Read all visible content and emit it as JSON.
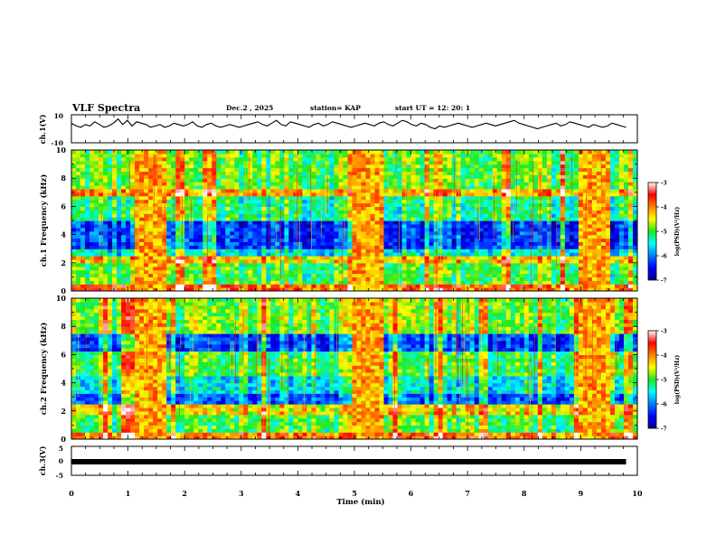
{
  "header": {
    "title": "VLF Spectra",
    "date": "Dec.2 , 2025",
    "station": "station= KAP",
    "start": "start UT = 12: 20: 1"
  },
  "chart_data": [
    {
      "type": "line",
      "name": "ch1-voltage",
      "ylabel": "ch.1(V)",
      "ylim": [
        -10,
        10
      ],
      "yticklabels": [
        "10",
        "-10"
      ],
      "series": [
        {
          "name": "ch.1",
          "values": [
            4,
            2,
            1,
            3,
            2,
            5,
            3,
            1,
            2,
            4,
            7,
            3,
            6,
            2,
            5,
            4,
            3,
            1,
            2,
            3,
            1,
            2,
            4,
            3,
            2,
            3,
            5,
            2,
            1,
            3,
            4,
            2,
            1,
            2,
            3,
            2,
            1,
            2,
            3,
            4,
            5,
            3,
            2,
            4,
            6,
            3,
            2,
            5,
            4,
            3,
            2,
            1,
            3,
            4,
            2,
            3,
            5,
            4,
            3,
            2,
            1,
            2,
            3,
            4,
            3,
            2,
            4,
            5,
            3,
            2,
            4,
            6,
            5,
            3,
            2,
            4,
            3,
            1,
            0,
            2,
            1,
            2,
            3,
            4,
            3,
            2,
            1,
            2,
            3,
            4,
            3,
            2,
            3,
            4,
            5,
            6,
            4,
            3,
            2,
            1,
            0,
            1,
            2,
            3,
            4,
            2,
            3,
            5,
            4,
            3,
            2,
            1,
            3,
            2,
            1,
            2,
            4,
            3,
            2,
            1
          ]
        }
      ]
    },
    {
      "type": "heatmap",
      "name": "ch1-spectrogram",
      "ylabel": "ch.1 Frequency (kHz)",
      "ylim": [
        0,
        10
      ],
      "yticks": [
        0,
        2,
        4,
        6,
        8,
        10
      ],
      "colorbar": {
        "label": "log(PSD)(V²/Hz)",
        "range": [
          -7,
          -3
        ],
        "ticks": [
          -3,
          -4,
          -5,
          -6,
          -7
        ]
      },
      "bands_khz": [
        {
          "from": 0,
          "to": 0.5,
          "level": -3.8
        },
        {
          "from": 0.5,
          "to": 2,
          "level": -5.0
        },
        {
          "from": 2,
          "to": 2.5,
          "level": -4.3
        },
        {
          "from": 2.5,
          "to": 3,
          "level": -5.5
        },
        {
          "from": 3,
          "to": 5,
          "level": -6.3
        },
        {
          "from": 5,
          "to": 6.8,
          "level": -5.2
        },
        {
          "from": 6.8,
          "to": 7.2,
          "level": -4.1
        },
        {
          "from": 7.2,
          "to": 10,
          "level": -4.9
        }
      ],
      "bursts_min": [
        [
          1.1,
          1.65
        ],
        [
          5.0,
          5.5
        ],
        [
          8.95,
          9.5
        ]
      ]
    },
    {
      "type": "heatmap",
      "name": "ch2-spectrogram",
      "ylabel": "ch.2 Frequency (kHz)",
      "ylim": [
        0,
        10
      ],
      "yticks": [
        0,
        2,
        4,
        6,
        8,
        10
      ],
      "colorbar": {
        "label": "log(PSD)(V²/Hz)",
        "range": [
          -7,
          -3
        ],
        "ticks": [
          -3,
          -4,
          -5,
          -6,
          -7
        ]
      },
      "bands_khz": [
        {
          "from": 0,
          "to": 0.5,
          "level": -3.9
        },
        {
          "from": 0.5,
          "to": 1.8,
          "level": -5.0
        },
        {
          "from": 1.8,
          "to": 2.4,
          "level": -4.4
        },
        {
          "from": 2.4,
          "to": 3.2,
          "level": -6.1
        },
        {
          "from": 3.2,
          "to": 4.6,
          "level": -5.5
        },
        {
          "from": 4.6,
          "to": 6.2,
          "level": -5.0
        },
        {
          "from": 6.2,
          "to": 7.4,
          "level": -6.2
        },
        {
          "from": 7.4,
          "to": 10,
          "level": -4.8
        }
      ],
      "bursts_min": [
        [
          1.1,
          1.65
        ],
        [
          5.0,
          5.5
        ],
        [
          8.95,
          9.5
        ]
      ]
    },
    {
      "type": "line",
      "name": "ch3-voltage",
      "ylabel": "ch.3(V)",
      "ylim": [
        -5,
        5
      ],
      "yticklabels": [
        "5",
        "0",
        "-5"
      ],
      "series": [
        {
          "name": "ch.3",
          "values": [
            0,
            0
          ]
        }
      ],
      "x_range": [
        0,
        9.8
      ],
      "xlabel": "Time (min)",
      "xlim": [
        0,
        10
      ],
      "xticks": [
        0,
        1,
        2,
        3,
        4,
        5,
        6,
        7,
        8,
        9,
        10
      ]
    }
  ]
}
